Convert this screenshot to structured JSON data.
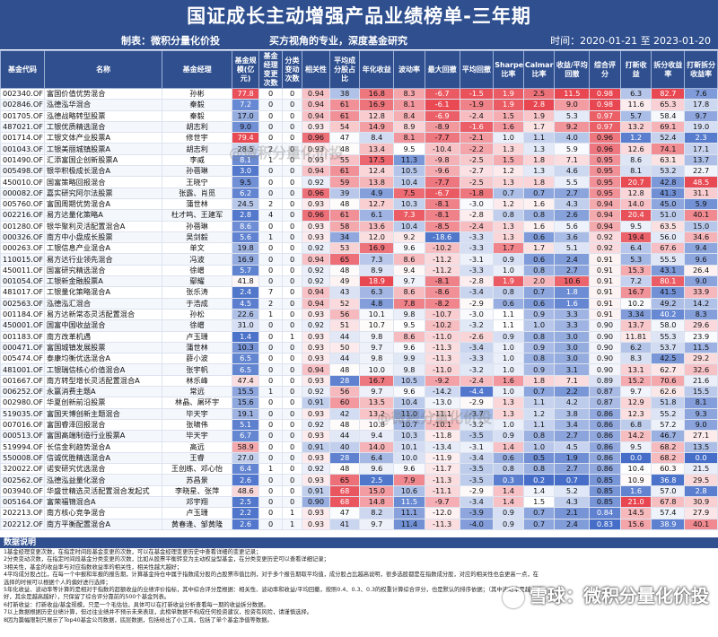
{
  "title": "国证成长主动增强产品业绩榜单-三年期",
  "maker": "制表：微积分量化价投",
  "slogan": "买方视角的专业，深度基金研究",
  "time": "时间：2020-01-21 至 2023-01-20",
  "watermark": "@微积分量化价投",
  "brand": "雪球：微积分量化价投",
  "headers": [
    "基金代码",
    "名称",
    "基金经理",
    "基金规模(亿元)",
    "基金经理变更次数",
    "分类变动次数",
    "相关性",
    "平均成分股占比",
    "年化收益",
    "波动率",
    "最大回撤",
    "平均回撤",
    "Sharpe比率",
    "Calmar比率",
    "收益/平均回撤",
    "综合评分",
    "打新收益",
    "拆分收益率",
    "打新拆分收益率"
  ],
  "rows": [
    [
      "002340.OF",
      "富国价值优势混合",
      "孙彬",
      "77.8",
      "0",
      "0",
      "0.94",
      "38",
      "16.8",
      "8.3",
      "-6.7",
      "-1.5",
      "1.9",
      "2.5",
      "11.5",
      "0.98",
      "6.3",
      "82.7",
      "7.6"
    ],
    [
      "002846.OF",
      "泓德泓华混合",
      "秦毅",
      "7.2",
      "0",
      "0",
      "0.94",
      "61",
      "16.9",
      "8.1",
      "-6.1",
      "-1.9",
      "1.9",
      "2.8",
      "9.0",
      "0.98",
      "11.6",
      "65.3",
      "17.8"
    ],
    [
      "001705.OF",
      "泓德战略转型股票",
      "秦毅",
      "17.0",
      "0",
      "0",
      "0.94",
      "61",
      "12.8",
      "8.4",
      "-6.9",
      "-2.4",
      "1.5",
      "1.9",
      "5.3",
      "0.97",
      "5.7",
      "58.4",
      "9.7"
    ],
    [
      "487021.OF",
      "工银优质精选混合",
      "胡志利",
      "9.0",
      "0",
      "0",
      "0.93",
      "54",
      "14.9",
      "8.9",
      "-8.9",
      "-1.6",
      "1.6",
      "1.7",
      "9.2",
      "0.97",
      "13.2",
      "69.1",
      "19.0"
    ],
    [
      "001714.OF",
      "工银文体产业股票A",
      "修世宇",
      "79.4",
      "0",
      "0",
      "0.96",
      "47",
      "8.4",
      "8.1",
      "-7.7",
      "-2.1",
      "1.0",
      "1.1",
      "4.0",
      "0.96",
      "1.2",
      "52.4",
      "2.3"
    ],
    [
      "001043.OF",
      "工银美丽城镇股票A",
      "胡志利",
      "28.5",
      "2",
      "0",
      "0.93",
      "48",
      "13.4",
      "9.5",
      "-10.4",
      "-2.2",
      "1.3",
      "1.3",
      "5.9",
      "0.96",
      "12.6",
      "74.1",
      "17.1"
    ],
    [
      "001490.OF",
      "汇添富国企创新股票A",
      "李威",
      "8.1",
      "1",
      "0",
      "0.93",
      "55",
      "17.5",
      "11.3",
      "-9.8",
      "-2.5",
      "1.5",
      "1.8",
      "7.1",
      "0.95",
      "8.6",
      "63.1",
      "13.7"
    ],
    [
      "005498.OF",
      "银华积极成长混合A",
      "孙蓓琳",
      "3.0",
      "0",
      "0",
      "0.94",
      "61",
      "12.4",
      "10.5",
      "-9.6",
      "-2.7",
      "1.2",
      "1.3",
      "4.6",
      "0.95",
      "8.1",
      "53.2",
      "22.7"
    ],
    [
      "450010.OF",
      "国富策略回报混合",
      "王晓宁",
      "9.5",
      "0",
      "0",
      "0.92",
      "59",
      "13.8",
      "10.4",
      "-7.7",
      "-2.5",
      "1.3",
      "1.8",
      "5.5",
      "0.95",
      "20.7",
      "42.8",
      "48.5"
    ],
    [
      "000082.OF",
      "嘉实研究阿尔法股票",
      "张露、肖觅",
      "6.2",
      "0",
      "0",
      "0.96",
      "39",
      "4.9",
      "7.5",
      "-6.7",
      "-1.8",
      "0.7",
      "0.7",
      "2.7",
      "0.95",
      "12.8",
      "41.3",
      "31.1"
    ],
    [
      "005760.OF",
      "富国周期优势混合A",
      "蒲世林",
      "24.5",
      "2",
      "0",
      "0.93",
      "48",
      "12.7",
      "10.3",
      "-8.1",
      "-3.0",
      "1.2",
      "1.6",
      "4.3",
      "0.94",
      "14.0",
      "45.0",
      "5.9"
    ],
    [
      "002216.OF",
      "易方达量化策略A",
      "杜才鸣、王建军",
      "2.8",
      "4",
      "0",
      "0.96",
      "61",
      "6.1",
      "7.3",
      "-8.1",
      "-2.8",
      "0.8",
      "0.8",
      "2.6",
      "0.94",
      "20.4",
      "51.0",
      "40.1"
    ],
    [
      "001280.OF",
      "银华聚利灵活配置混合A",
      "孙蓓琳",
      "8.6",
      "0",
      "0",
      "0.93",
      "58",
      "13.6",
      "10.4",
      "-8.5",
      "-2.4",
      "1.3",
      "1.6",
      "5.6",
      "0.94",
      "9.5",
      "63.5",
      "15.0"
    ],
    [
      "000326.OF",
      "南方中小盘成长股票",
      "吴剑毅",
      "5.6",
      "1",
      "0",
      "0.93",
      "34",
      "12.0",
      "9.2",
      "-18.6",
      "-3.3",
      "1.3",
      "0.6",
      "3.6",
      "0.92",
      "19.4",
      "56.0",
      "34.6"
    ],
    [
      "000263.OF",
      "工银信息产业混合A",
      "单文",
      "19.8",
      "0",
      "0",
      "0.92",
      "53",
      "16.9",
      "9.6",
      "-10.2",
      "-3.3",
      "1.7",
      "1.7",
      "5.1",
      "0.92",
      "6.4",
      "67.6",
      "9.4"
    ],
    [
      "110015.OF",
      "易方达行业领先混合",
      "冯波",
      "16.9",
      "0",
      "0",
      "0.94",
      "65",
      "7.3",
      "8.6",
      "-11.2",
      "-3.1",
      "0.9",
      "0.6",
      "2.4",
      "0.91",
      "5.3",
      "55.5",
      "9.6"
    ],
    [
      "450011.OF",
      "国富研究精选混合",
      "徐嶒",
      "5.7",
      "0",
      "0",
      "0.92",
      "48",
      "8.9",
      "9.4",
      "-11.2",
      "-3.3",
      "1.0",
      "0.8",
      "2.7",
      "0.91",
      "15.3",
      "43.1",
      "26.4"
    ],
    [
      "001054.OF",
      "工银新金融股票A",
      "鄢耀",
      "41.8",
      "0",
      "0",
      "0.92",
      "49",
      "18.9",
      "9.7",
      "-8.1",
      "-2.8",
      "1.9",
      "2.0",
      "10.6",
      "0.91",
      "7.2",
      "80.1",
      "9.0"
    ],
    [
      "481017.OF",
      "工银量化策略混合A",
      "张乐涛",
      "2.4",
      "7",
      "0",
      "0.94",
      "43",
      "6.3",
      "8.6",
      "-8.6",
      "-3.4",
      "0.8",
      "0.7",
      "1.8",
      "0.91",
      "16.7",
      "41.5",
      "33.9"
    ],
    [
      "002563.OF",
      "泓德泓汇混合",
      "于浩成",
      "4.5",
      "2",
      "0",
      "0.94",
      "52",
      "4.8",
      "7.8",
      "-8.2",
      "-2.9",
      "0.6",
      "0.6",
      "1.6",
      "0.91",
      "10.2",
      "49.2",
      "14.2"
    ],
    [
      "001184.OF",
      "易方达新常态灵活配置混合",
      "孙松",
      "22.6",
      "1",
      "0",
      "0.93",
      "56",
      "10.1",
      "9.8",
      "-10.7",
      "-3.0",
      "1.1",
      "0.9",
      "3.3",
      "0.91",
      "3.34",
      "40.2",
      "8.3"
    ],
    [
      "450001.OF",
      "国富中国收益混合",
      "徐嶒",
      "31.0",
      "0",
      "0",
      "0.92",
      "51",
      "10.7",
      "9.5",
      "-10.2",
      "-3.2",
      "1.1",
      "1.0",
      "3.3",
      "0.90",
      "13.7",
      "58.0",
      "29.6"
    ],
    [
      "001183.OF",
      "南方改革机遇",
      "卢玉珊",
      "1.4",
      "0",
      "1",
      "0.93",
      "44",
      "9.8",
      "8.6",
      "-11.0",
      "-2.6",
      "0.9",
      "0.8",
      "3.0",
      "0.90",
      "11.81",
      "55.3",
      "23.9"
    ],
    [
      "000471.OF",
      "富国城镇发展股票",
      "蒲世林",
      "10.3",
      "0",
      "0",
      "0.93",
      "50",
      "9.7",
      "9.6",
      "-11.3",
      "-3.4",
      "1.0",
      "0.9",
      "3.0",
      "0.90",
      "6.2",
      "53.7",
      "11.5"
    ],
    [
      "005474.OF",
      "泰康均衡优选混合A",
      "薛小波",
      "6.5",
      "0",
      "0",
      "0.93",
      "44",
      "9.8",
      "9.9",
      "-11.3",
      "-3.3",
      "1.0",
      "0.8",
      "3.0",
      "0.90",
      "8.3",
      "42.5",
      "29.2"
    ],
    [
      "481001.OF",
      "工银瑞信核心价值混合A",
      "张宇帆",
      "6.5",
      "0",
      "0",
      "0.94",
      "48",
      "10.0",
      "9.8",
      "-11.0",
      "-3.2",
      "1.0",
      "0.9",
      "3.1",
      "0.90",
      "13.1",
      "62.7",
      "32.6"
    ],
    [
      "001667.OF",
      "南方转型增长灵活配置混合A",
      "林乐峰",
      "47.4",
      "0",
      "0",
      "0.93",
      "28",
      "16.7",
      "10.5",
      "-9.2",
      "-2.4",
      "1.6",
      "1.8",
      "7.1",
      "0.89",
      "15.2",
      "70.6",
      "21.6"
    ],
    [
      "006252.OF",
      "永赢消费主题A",
      "常远",
      "15.5",
      "1",
      "0",
      "0.92",
      "56",
      "9.7",
      "9.6",
      "-14.2",
      "-4.4",
      "1.0",
      "0.7",
      "2.2",
      "0.87",
      "9.7",
      "62.6",
      "15.5"
    ],
    [
      "002980.OF",
      "华夏创新前沿股票",
      "林晶、屠环宇",
      "15.6",
      "0",
      "0",
      "0.91",
      "60",
      "13.5",
      "10.4",
      "-13.0",
      "-2.9",
      "1.3",
      "1.1",
      "4.2",
      "0.87",
      "12.9",
      "51.8",
      "8.1"
    ],
    [
      "519035.OF",
      "富国天博创新主题混合",
      "毕天宇",
      "19.1",
      "0",
      "0",
      "0.93",
      "42",
      "13.2",
      "11.0",
      "-11.1",
      "-3.7",
      "1.3",
      "1.2",
      "3.8",
      "0.86",
      "12.3",
      "55.2",
      "9.3"
    ],
    [
      "007016.OF",
      "富国睿泽回报混合",
      "张啸伟",
      "5.1",
      "0",
      "0",
      "0.92",
      "48",
      "10.8",
      "10.7",
      "-10.1",
      "-3.2",
      "1.0",
      "1.1",
      "3.4",
      "0.86",
      "6.8",
      "57.2",
      "9.0"
    ],
    [
      "000513.OF",
      "富国高端制造行业股票A",
      "毕天宇",
      "6.7",
      "0",
      "0",
      "0.93",
      "44",
      "9.4",
      "10.3",
      "-11.8",
      "-3.5",
      "0.9",
      "0.8",
      "2.7",
      "0.86",
      "14.2",
      "46.7",
      "27.1"
    ],
    [
      "519994.OF",
      "长信金利趋势混合A",
      "高远",
      "58.9",
      "0",
      "0",
      "0.91",
      "40",
      "14.0",
      "10.1",
      "-13.4",
      "-3.1",
      "1.4",
      "1.0",
      "4.5",
      "0.86",
      "9.5",
      "68.2",
      "13.5"
    ],
    [
      "550008.OF",
      "信诚优胜精选混合A",
      "王睿",
      "27.0",
      "0",
      "0",
      "0.93",
      "28",
      "6.4",
      "10.0",
      "-11.9",
      "-3.4",
      "0.6",
      "0.5",
      "1.9",
      "0.86",
      "0.0",
      "68.2",
      "0.0"
    ],
    [
      "320022.OF",
      "诺安研究优选混合",
      "王创练、邓心怡",
      "6.4",
      "1",
      "0",
      "0.92",
      "48",
      "9.6",
      "9.6",
      "-11.7",
      "-3.5",
      "0.8",
      "0.8",
      "2.7",
      "0.86",
      "10.4",
      "60.3",
      "21.5"
    ],
    [
      "002562.OF",
      "泓德泓益量化混合",
      "苏昌景",
      "2.6",
      "0",
      "0",
      "0.93",
      "65",
      "2.5",
      "7.9",
      "-11.3",
      "-3.5",
      "0.3",
      "0.2",
      "0.7",
      "0.85",
      "10.9",
      "36.8",
      "29.5"
    ],
    [
      "003940.OF",
      "华盛世精选灵活配置混合发起式",
      "李晓星、张萍",
      "48.6",
      "0",
      "0",
      "0.91",
      "68",
      "15.0",
      "10.6",
      "-11.1",
      "-2.9",
      "1.4",
      "1.4",
      "5.2",
      "0.85",
      "1.6",
      "57.0",
      "2.8"
    ],
    [
      "005164.OF",
      "富荣福锦混合A",
      "邓宇翔",
      "2.5",
      "0",
      "0",
      "0.90",
      "68",
      "14.8",
      "11.5",
      "-9.7",
      "-3.4",
      "1.4",
      "1.5",
      "4.3",
      "0.85",
      "21.0",
      "67.8",
      "30.9"
    ],
    [
      "202213.OF",
      "南方核心竞争混合",
      "卢玉珊",
      "2.2",
      "0",
      "1",
      "0.93",
      "47",
      "8.2",
      "11.1",
      "-12.0",
      "-3.9",
      "0.9",
      "0.7",
      "2.1",
      "0.84",
      "14.5",
      "57.4",
      "27.9"
    ],
    [
      "202212.OF",
      "南方平衡配置混合A",
      "黄春逢、邹黄隆",
      "2.6",
      "0",
      "1",
      "0.93",
      "41",
      "9.7",
      "11.4",
      "-11.3",
      "-4.0",
      "0.9",
      "0.7",
      "2.4",
      "0.83",
      "15.6",
      "38.9",
      "40.1"
    ]
  ],
  "notes_header": "数据说明",
  "notes": [
    "1基金经理变更次数，在指定时间段基金变更的次数，可以在基金经理变更历史中查看详细的变更记录；",
    "2分类变动次数，在指定时间段基金分类变更的次数，比如从股票平衡转变为主动权益型基金，在分类变更历史可以查看详细记录；",
    "3相关性，基金的收益率与对应指数收益率的相关性，相关性越大越好；",
    "4平均成分股占比，在每一个中报和年报的报告期，计算基金持仓中属于指数成分股的占股票市值比例，对于多个报告期取平均值，成分股占比越高说明，很多选股都是在指数成分股，对应的相关性也会更高一点，在选择的时候可以根据个人的偏好进行选择；",
    "5年化收益、波动率等计算的是相对于指数的超额收益的业绩评价指标，其中综合评分是根据：相关性、波动率和收益/平均回撤，按照0.4、0.3、0.3的权重计算综合评分，也是默认的排序依据；（其中波动率是越小越好，其余是越高越好），只保留了综合评分靠前的500个基金列表。",
    "6打新收益：打新收益/基金规模，只是一个毛估估，具体可以在打新收益分析查看每一期的收益拆分数据。",
    "7以上数据根据历史业绩计算，但过往业绩并不预示未来表现，此榜单数据不构成任何投资建议，投资有风险，请谨慎选择。",
    "8因为篇幅限制只展示了Top40基金公司数据，底层数据，包括给出了小工具，包括了单个基金净值等数据。"
  ]
}
